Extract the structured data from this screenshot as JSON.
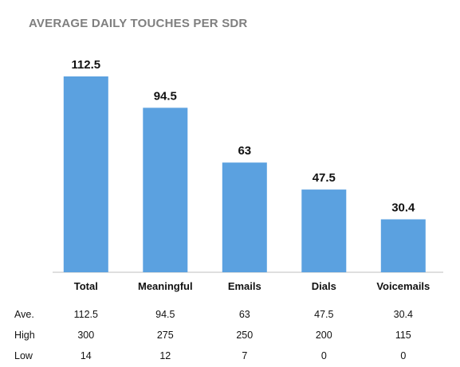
{
  "chart_data": {
    "type": "bar",
    "title": "AVERAGE DAILY TOUCHES PER SDR",
    "categories": [
      "Total",
      "Meaningful",
      "Emails",
      "Dials",
      "Voicemails"
    ],
    "values": [
      112.5,
      94.5,
      63,
      47.5,
      30.4
    ],
    "data_labels": [
      "112.5",
      "94.5",
      "63",
      "47.5",
      "30.4"
    ],
    "ylim": [
      0,
      112.5
    ],
    "grid": false,
    "legend": "none",
    "bar_color": "#5ba1e0",
    "table": {
      "rows": [
        {
          "label": "Ave.",
          "values": [
            "112.5",
            "94.5",
            "63",
            "47.5",
            "30.4"
          ]
        },
        {
          "label": "High",
          "values": [
            "300",
            "275",
            "250",
            "200",
            "115"
          ]
        },
        {
          "label": "Low",
          "values": [
            "14",
            "12",
            "7",
            "0",
            "0"
          ]
        }
      ]
    }
  }
}
